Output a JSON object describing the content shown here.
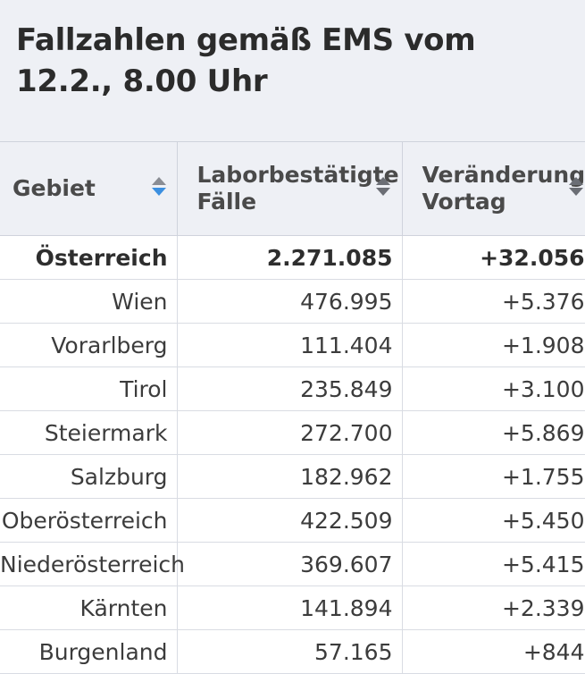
{
  "title": "Fallzahlen gemäß EMS vom 12.2., 8.00 Uhr",
  "columns": [
    {
      "label_lines": [
        "Gebiet"
      ],
      "sort_state": "descending"
    },
    {
      "label_lines": [
        "Laborbestätigte",
        "Fälle"
      ],
      "sort_state": "none"
    },
    {
      "label_lines": [
        "Veränderung",
        "Vortag"
      ],
      "sort_state": "none"
    }
  ],
  "rows": [
    {
      "gebiet": "Österreich",
      "faelle": "2.271.085",
      "veraenderung": "+32.056"
    },
    {
      "gebiet": "Wien",
      "faelle": "476.995",
      "veraenderung": "+5.376"
    },
    {
      "gebiet": "Vorarlberg",
      "faelle": "111.404",
      "veraenderung": "+1.908"
    },
    {
      "gebiet": "Tirol",
      "faelle": "235.849",
      "veraenderung": "+3.100"
    },
    {
      "gebiet": "Steiermark",
      "faelle": "272.700",
      "veraenderung": "+5.869"
    },
    {
      "gebiet": "Salzburg",
      "faelle": "182.962",
      "veraenderung": "+1.755"
    },
    {
      "gebiet": "Oberösterreich",
      "faelle": "422.509",
      "veraenderung": "+5.450"
    },
    {
      "gebiet": "Niederösterreich",
      "faelle": "369.607",
      "veraenderung": "+5.415"
    },
    {
      "gebiet": "Kärnten",
      "faelle": "141.894",
      "veraenderung": "+2.339"
    },
    {
      "gebiet": "Burgenland",
      "faelle": "57.165",
      "veraenderung": "+844"
    }
  ],
  "colors": {
    "header_bg": "#eef0f5",
    "sort_active": "#3b8fe0",
    "sort_icon": "#6b6e75",
    "grid": "#d9dce3"
  }
}
